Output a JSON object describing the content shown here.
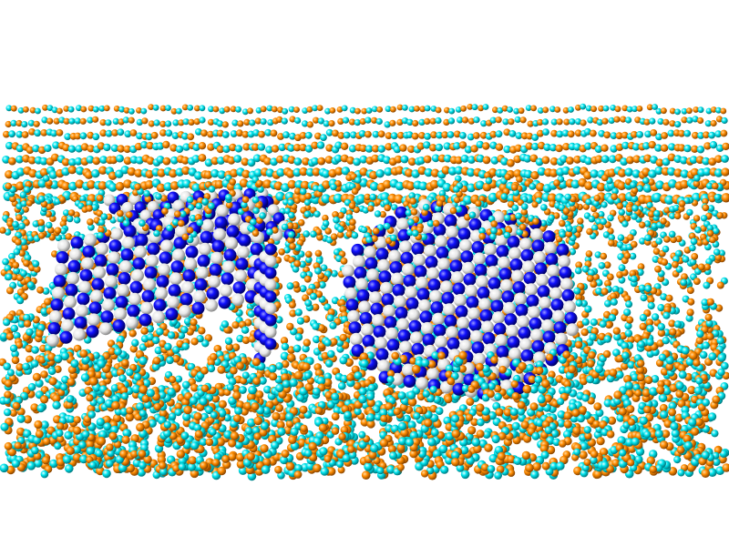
{
  "scene": {
    "background_color": "#ffffff",
    "solvent_atom_colors": [
      "#ff8c00",
      "#00e5ee"
    ],
    "crystal_atom_colors": [
      "#0000ff",
      "#f0f0f0"
    ],
    "crystals": [
      {
        "name": "cubic-nanocrystal-left",
        "shape": "cuboid"
      },
      {
        "name": "rounded-nanocrystal-right",
        "shape": "truncated-octahedron"
      }
    ]
  }
}
